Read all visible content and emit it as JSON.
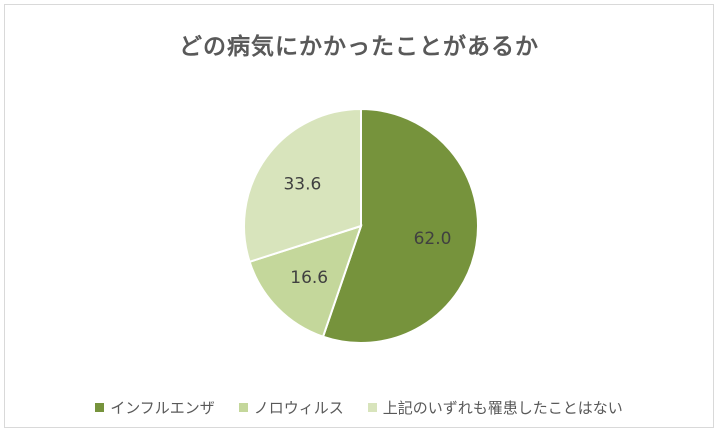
{
  "chart_data": {
    "type": "pie",
    "title": "どの病気にかかったことがあるか",
    "categories": [
      "インフルエンザ",
      "ノロウィルス",
      "上記のいずれも罹患したことはない"
    ],
    "values": [
      62.0,
      16.6,
      33.6
    ],
    "value_labels": [
      "62.0",
      "16.6",
      "33.6"
    ],
    "colors": [
      "#76933c",
      "#c4d79b",
      "#d8e4bc"
    ],
    "legend_position": "bottom"
  }
}
